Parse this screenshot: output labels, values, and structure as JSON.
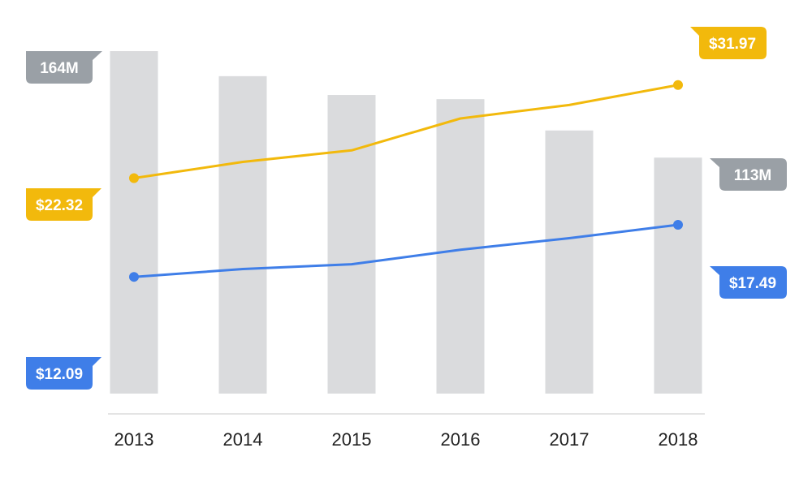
{
  "chart_data": {
    "type": "bar",
    "categories": [
      "2013",
      "2014",
      "2015",
      "2016",
      "2017",
      "2018"
    ],
    "series": [
      {
        "kind": "bar",
        "values": [
          164,
          152,
          143,
          141,
          126,
          113
        ],
        "color": "#dadbdd",
        "label_color": "#9aa0a6"
      },
      {
        "kind": "line",
        "values": [
          22.32,
          24.0,
          25.2,
          28.5,
          29.9,
          31.97
        ],
        "color": "#f2b90c"
      },
      {
        "kind": "line",
        "values": [
          12.09,
          12.9,
          13.4,
          14.9,
          16.1,
          17.49
        ],
        "color": "#3f7ee8"
      }
    ],
    "labels": {
      "bar_first": "164M",
      "bar_last": "113M",
      "gold_first": "$22.32",
      "gold_last": "$31.97",
      "blue_first": "$12.09",
      "blue_last": "$17.49"
    },
    "bar_ylim": [
      0,
      164
    ],
    "line_ylim": [
      0,
      38
    ],
    "grid": false,
    "legend": "none"
  }
}
